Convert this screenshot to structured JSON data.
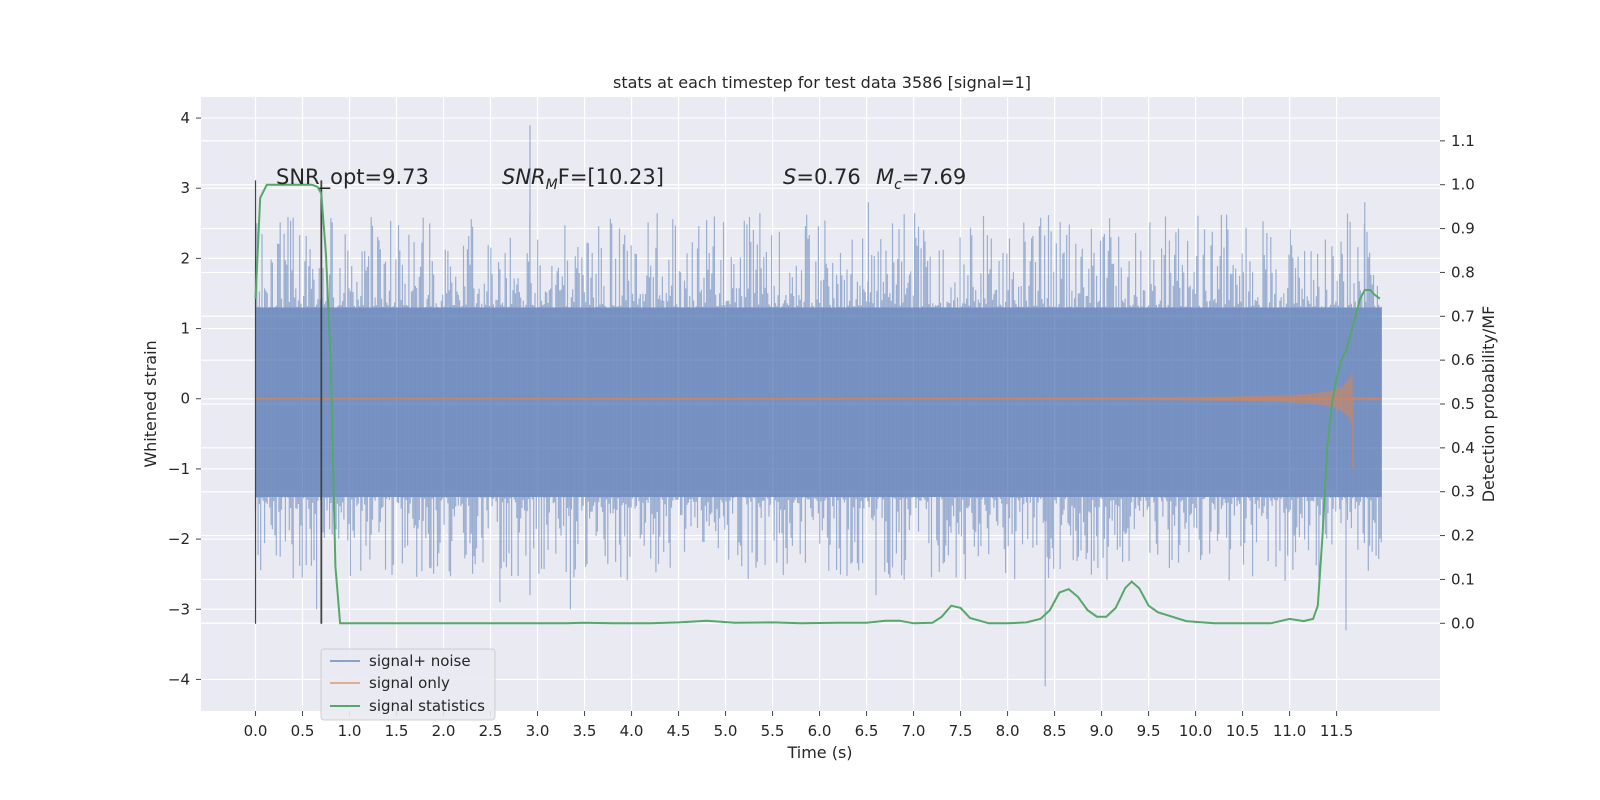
{
  "chart_data": {
    "type": "line",
    "title": "stats at each timestep for test data 3586 [signal=1]",
    "xlabel": "Time (s)",
    "ylabel_left": "Whitened strain",
    "ylabel_right": "Detection probability/MF",
    "xlim": [
      -0.58,
      12.6
    ],
    "ylim_left": [
      -4.45,
      4.3
    ],
    "ylim_right": [
      -0.2,
      1.2
    ],
    "x_ticks": [
      "0.0",
      "0.5",
      "1.0",
      "1.5",
      "2.0",
      "2.5",
      "3.0",
      "3.5",
      "4.0",
      "4.5",
      "5.0",
      "5.5",
      "6.0",
      "6.5",
      "7.0",
      "7.5",
      "8.0",
      "8.5",
      "9.0",
      "9.5",
      "10.0",
      "10.5",
      "11.0",
      "11.5"
    ],
    "y_ticks_left": [
      "−4",
      "−3",
      "−2",
      "−1",
      "0",
      "1",
      "2",
      "3",
      "4"
    ],
    "y_ticks_right": [
      "0.0",
      "0.1",
      "0.2",
      "0.3",
      "0.4",
      "0.5",
      "0.6",
      "0.7",
      "0.8",
      "0.9",
      "1.0",
      "1.1"
    ],
    "grid": true,
    "legend_position": "lower-left",
    "annotations": {
      "snr_opt": "SNR_opt=9.73",
      "snr_mf_label": "SNR",
      "snr_mf_sub": "M",
      "snr_mf_tail": "F=[10.23]",
      "s_label": "S",
      "s_value": "=0.76",
      "mc_label": "M",
      "mc_sub": "c",
      "mc_value": "=7.69"
    },
    "vertical_markers": [
      0.0,
      0.7
    ],
    "series": [
      {
        "name": "signal+ noise",
        "color": "#4c72b0",
        "style": "noise band",
        "t_range": [
          0.0,
          11.98
        ],
        "envelope_upper": 1.3,
        "envelope_lower": -1.4,
        "spikes": [
          {
            "t": 2.92,
            "value": 3.9
          },
          {
            "t": 2.92,
            "value": -2.8
          },
          {
            "t": 6.52,
            "value": 2.8
          },
          {
            "t": 11.8,
            "value": 2.8
          },
          {
            "t": 8.4,
            "value": -4.1
          },
          {
            "t": 11.6,
            "value": -3.3
          },
          {
            "t": 3.35,
            "value": -3.0
          },
          {
            "t": 0.65,
            "value": -3.0
          },
          {
            "t": 6.6,
            "value": -2.8
          },
          {
            "t": 2.6,
            "value": -2.9
          }
        ]
      },
      {
        "name": "signal only",
        "color": "#dd8452",
        "style": "chirp",
        "t_range": [
          0.0,
          11.98
        ],
        "amplitude_end": 0.5,
        "merger_time": 11.67
      },
      {
        "name": "signal statistics",
        "color": "#55a868",
        "x": [
          0.0,
          0.05,
          0.12,
          0.2,
          0.3,
          0.45,
          0.6,
          0.66,
          0.7,
          0.75,
          0.8,
          0.85,
          0.9,
          1.0,
          1.5,
          2.0,
          2.5,
          3.0,
          3.3,
          3.5,
          3.8,
          4.2,
          4.5,
          4.8,
          5.1,
          5.5,
          5.8,
          6.2,
          6.5,
          6.7,
          6.85,
          7.0,
          7.2,
          7.3,
          7.4,
          7.5,
          7.6,
          7.8,
          8.0,
          8.2,
          8.35,
          8.45,
          8.55,
          8.65,
          8.75,
          8.85,
          8.95,
          9.05,
          9.15,
          9.25,
          9.32,
          9.4,
          9.5,
          9.6,
          9.75,
          9.9,
          10.2,
          10.5,
          10.8,
          11.0,
          11.15,
          11.25,
          11.3,
          11.35,
          11.4,
          11.45,
          11.5,
          11.55,
          11.6,
          11.65,
          11.7,
          11.75,
          11.8,
          11.86,
          11.9,
          11.96
        ],
        "values": [
          0.74,
          0.97,
          1.0,
          1.0,
          1.0,
          1.0,
          1.0,
          0.995,
          0.98,
          0.84,
          0.6,
          0.13,
          0.0,
          0.0,
          0.0,
          0.0,
          0.0,
          0.0,
          0.0,
          0.001,
          0.0,
          0.0,
          0.002,
          0.006,
          0.001,
          0.002,
          0.0,
          0.001,
          0.001,
          0.006,
          0.006,
          0.0,
          0.001,
          0.015,
          0.04,
          0.035,
          0.012,
          0.0,
          0.0,
          0.002,
          0.01,
          0.03,
          0.07,
          0.078,
          0.06,
          0.03,
          0.015,
          0.015,
          0.035,
          0.08,
          0.095,
          0.08,
          0.04,
          0.025,
          0.015,
          0.005,
          0.0,
          0.0,
          0.0,
          0.01,
          0.005,
          0.01,
          0.04,
          0.2,
          0.4,
          0.5,
          0.56,
          0.6,
          0.62,
          0.66,
          0.7,
          0.74,
          0.76,
          0.76,
          0.75,
          0.74
        ]
      }
    ]
  }
}
